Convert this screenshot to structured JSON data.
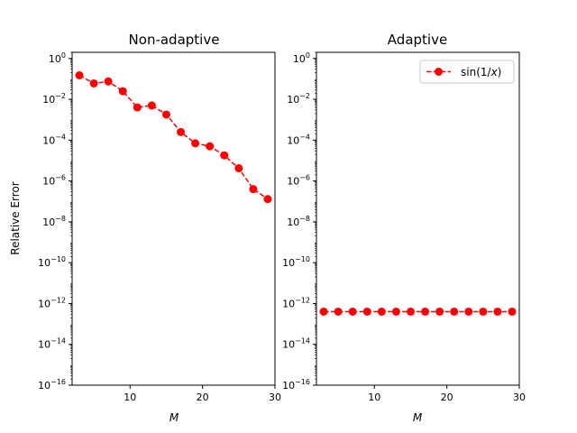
{
  "chart_data": [
    {
      "type": "line",
      "title": "Non-adaptive",
      "xlabel": "M",
      "ylabel": "Relative Error",
      "yscale": "log",
      "xlim": [
        2,
        30
      ],
      "ylim": [
        1e-16,
        2
      ],
      "xticks": [
        10,
        20,
        30
      ],
      "yticks": [
        0,
        -2,
        -4,
        -6,
        -8,
        -10,
        -12,
        -14,
        -16
      ],
      "legend": null,
      "series": [
        {
          "name": "",
          "color": "#ff0000",
          "marker": "circle",
          "linestyle": "dashed",
          "x": [
            3,
            5,
            7,
            9,
            11,
            13,
            15,
            17,
            19,
            21,
            23,
            25,
            27,
            29
          ],
          "y": [
            0.15,
            0.06,
            0.075,
            0.025,
            0.004,
            0.005,
            0.0018,
            0.00025,
            7e-05,
            5e-05,
            1.8e-05,
            4.2e-06,
            4e-07,
            1.3e-07
          ]
        }
      ]
    },
    {
      "type": "line",
      "title": "Adaptive",
      "xlabel": "M",
      "ylabel": "",
      "yscale": "log",
      "xlim": [
        2,
        30
      ],
      "ylim": [
        1e-16,
        2
      ],
      "xticks": [
        10,
        20,
        30
      ],
      "yticks": [
        0,
        -2,
        -4,
        -6,
        -8,
        -10,
        -12,
        -14,
        -16
      ],
      "legend": "top-right",
      "series": [
        {
          "name": "sin(1/x)",
          "name_parts": [
            "sin(1/",
            "x",
            ")"
          ],
          "color": "#ff0000",
          "marker": "circle",
          "linestyle": "dashed",
          "x": [
            3,
            5,
            7,
            9,
            11,
            13,
            15,
            17,
            19,
            21,
            23,
            25,
            27,
            29
          ],
          "y": [
            4e-13,
            4e-13,
            4e-13,
            4e-13,
            4e-13,
            4e-13,
            4e-13,
            4e-13,
            4e-13,
            4e-13,
            4e-13,
            4e-13,
            4e-13,
            4e-13
          ]
        }
      ]
    }
  ]
}
